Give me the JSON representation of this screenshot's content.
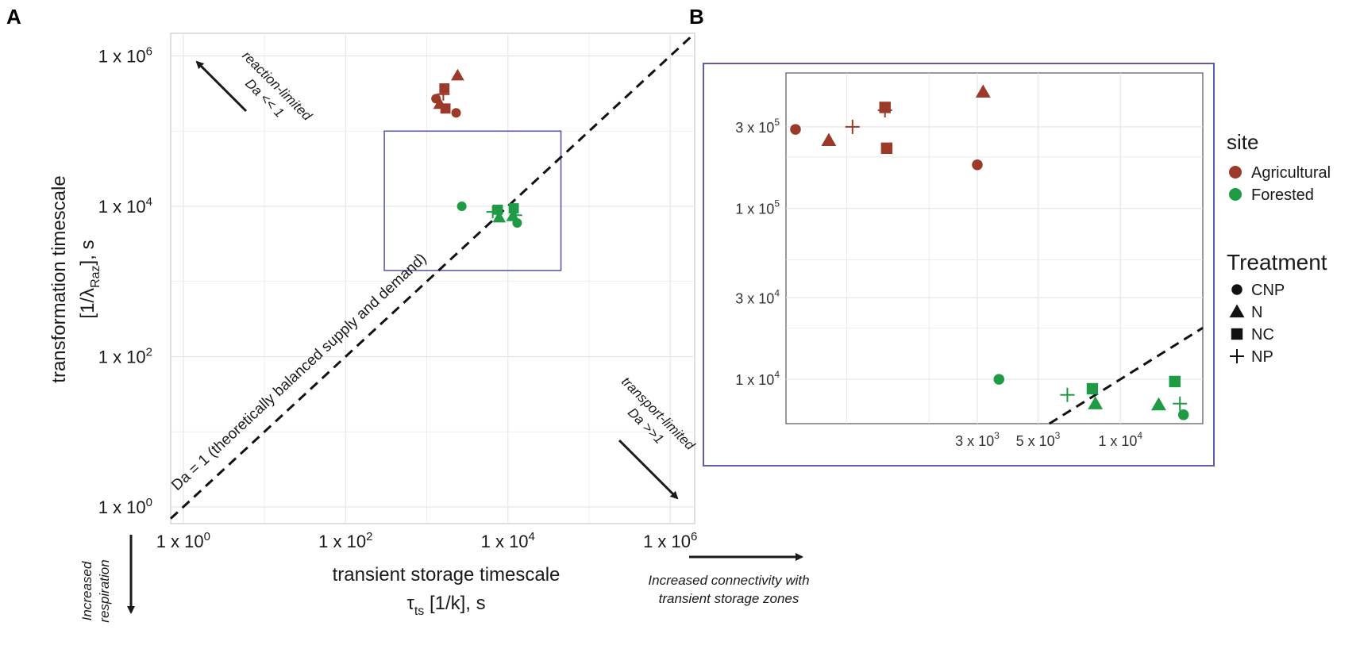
{
  "figure": {
    "panel_a_label": "A",
    "panel_b_label": "B"
  },
  "colors": {
    "agricultural": "#9b3a2a",
    "forested": "#1f9a45",
    "inset_box": "#5b5ea6",
    "grid": "#e6e6e6"
  },
  "chart_data": [
    {
      "id": "panel-a",
      "type": "scatter",
      "scale": "log-log",
      "xlabel_line1": "transient storage timescale",
      "xlabel_line2_main": "τ",
      "xlabel_line2_sub": "ts",
      "xlabel_line2_rest": " [1/k], s",
      "ylabel_line1": "transformation timescale",
      "ylabel_line2_pre": "[1/λ",
      "ylabel_line2_sub": "Raz",
      "ylabel_line2_post": "], s",
      "xlim": [
        0.7,
        2000000
      ],
      "ylim": [
        0.6,
        2000000
      ],
      "x_ticks": [
        {
          "value": 1,
          "label": "1 x 10",
          "exp": "0"
        },
        {
          "value": 100,
          "label": "1 x 10",
          "exp": "2"
        },
        {
          "value": 10000,
          "label": "1 x 10",
          "exp": "4"
        },
        {
          "value": 1000000,
          "label": "1 x 10",
          "exp": "6"
        }
      ],
      "y_ticks": [
        {
          "value": 1,
          "label": "1 x 10",
          "exp": "0"
        },
        {
          "value": 100,
          "label": "1 x 10",
          "exp": "2"
        },
        {
          "value": 10000,
          "label": "1 x 10",
          "exp": "4"
        },
        {
          "value": 1000000,
          "label": "1 x 10",
          "exp": "6"
        }
      ],
      "diagonal_label": "Da = 1 (theoretically balanced supply and demand)",
      "reaction_label_1": "reaction-limited",
      "reaction_label_2": "Da << 1",
      "transport_label_1": "transport-limited",
      "transport_label_2": "Da >>1",
      "below_label_1": "Increased",
      "below_label_2": "respiration",
      "right_label_1": "Increased connectivity with",
      "right_label_2": "transient storage zones",
      "inset_region": {
        "x": [
          300,
          45000
        ],
        "y": [
          1400,
          100000
        ]
      },
      "series": [
        {
          "name": "Agricultural",
          "site": "Agricultural",
          "points": [
            {
              "x": 1300,
              "y": 270000,
              "treatment": "CNP"
            },
            {
              "x": 2300,
              "y": 175000,
              "treatment": "CNP"
            },
            {
              "x": 2400,
              "y": 550000,
              "treatment": "N"
            },
            {
              "x": 1450,
              "y": 230000,
              "treatment": "N"
            },
            {
              "x": 1650,
              "y": 370000,
              "treatment": "NC"
            },
            {
              "x": 1700,
              "y": 200000,
              "treatment": "NC"
            },
            {
              "x": 1600,
              "y": 310000,
              "treatment": "NP"
            }
          ]
        },
        {
          "name": "Forested",
          "site": "Forested",
          "points": [
            {
              "x": 2700,
              "y": 10000,
              "treatment": "CNP"
            },
            {
              "x": 13000,
              "y": 6000,
              "treatment": "CNP"
            },
            {
              "x": 7800,
              "y": 7100,
              "treatment": "N"
            },
            {
              "x": 11500,
              "y": 7400,
              "treatment": "N"
            },
            {
              "x": 7500,
              "y": 9000,
              "treatment": "NC"
            },
            {
              "x": 11800,
              "y": 9400,
              "treatment": "NC"
            },
            {
              "x": 6500,
              "y": 8400,
              "treatment": "NP"
            },
            {
              "x": 12500,
              "y": 7600,
              "treatment": "NP"
            }
          ]
        }
      ]
    },
    {
      "id": "panel-b",
      "type": "scatter",
      "scale": "log-log",
      "xlim": [
        600,
        20000
      ],
      "ylim": [
        5500,
        620000
      ],
      "x_ticks": [
        {
          "value": 3000,
          "label": "3 x 10",
          "exp": "3"
        },
        {
          "value": 5000,
          "label": "5 x 10",
          "exp": "3"
        },
        {
          "value": 10000,
          "label": "1 x 10",
          "exp": "4"
        }
      ],
      "y_ticks": [
        {
          "value": 10000,
          "label": "1 x 10",
          "exp": "4"
        },
        {
          "value": 30000,
          "label": "3 x 10",
          "exp": "4"
        },
        {
          "value": 100000,
          "label": "1 x 10",
          "exp": "5"
        },
        {
          "value": 300000,
          "label": "3 x 10",
          "exp": "5"
        }
      ],
      "series": [
        {
          "name": "Agricultural",
          "site": "Agricultural",
          "points": [
            {
              "x": 650,
              "y": 290000,
              "treatment": "CNP"
            },
            {
              "x": 3000,
              "y": 180000,
              "treatment": "CNP"
            },
            {
              "x": 860,
              "y": 250000,
              "treatment": "N"
            },
            {
              "x": 3150,
              "y": 480000,
              "treatment": "N"
            },
            {
              "x": 1380,
              "y": 390000,
              "treatment": "NC"
            },
            {
              "x": 1400,
              "y": 225000,
              "treatment": "NC"
            },
            {
              "x": 1050,
              "y": 300000,
              "treatment": "NP"
            },
            {
              "x": 1380,
              "y": 375000,
              "treatment": "NP"
            }
          ]
        },
        {
          "name": "Forested",
          "site": "Forested",
          "points": [
            {
              "x": 3600,
              "y": 10000,
              "treatment": "CNP"
            },
            {
              "x": 17000,
              "y": 6200,
              "treatment": "CNP"
            },
            {
              "x": 8100,
              "y": 7200,
              "treatment": "N"
            },
            {
              "x": 13800,
              "y": 7100,
              "treatment": "N"
            },
            {
              "x": 7900,
              "y": 8800,
              "treatment": "NC"
            },
            {
              "x": 15800,
              "y": 9700,
              "treatment": "NC"
            },
            {
              "x": 6400,
              "y": 8100,
              "treatment": "NP"
            },
            {
              "x": 16500,
              "y": 7200,
              "treatment": "NP"
            }
          ]
        }
      ]
    }
  ],
  "legend": {
    "site_title": "site",
    "site_items": [
      {
        "label": "Agricultural",
        "color_key": "agricultural"
      },
      {
        "label": "Forested",
        "color_key": "forested"
      }
    ],
    "treatment_title": "Treatment",
    "treatment_items": [
      {
        "label": "CNP",
        "shape": "circle"
      },
      {
        "label": "N",
        "shape": "triangle"
      },
      {
        "label": "NC",
        "shape": "square"
      },
      {
        "label": "NP",
        "shape": "plus"
      }
    ]
  }
}
